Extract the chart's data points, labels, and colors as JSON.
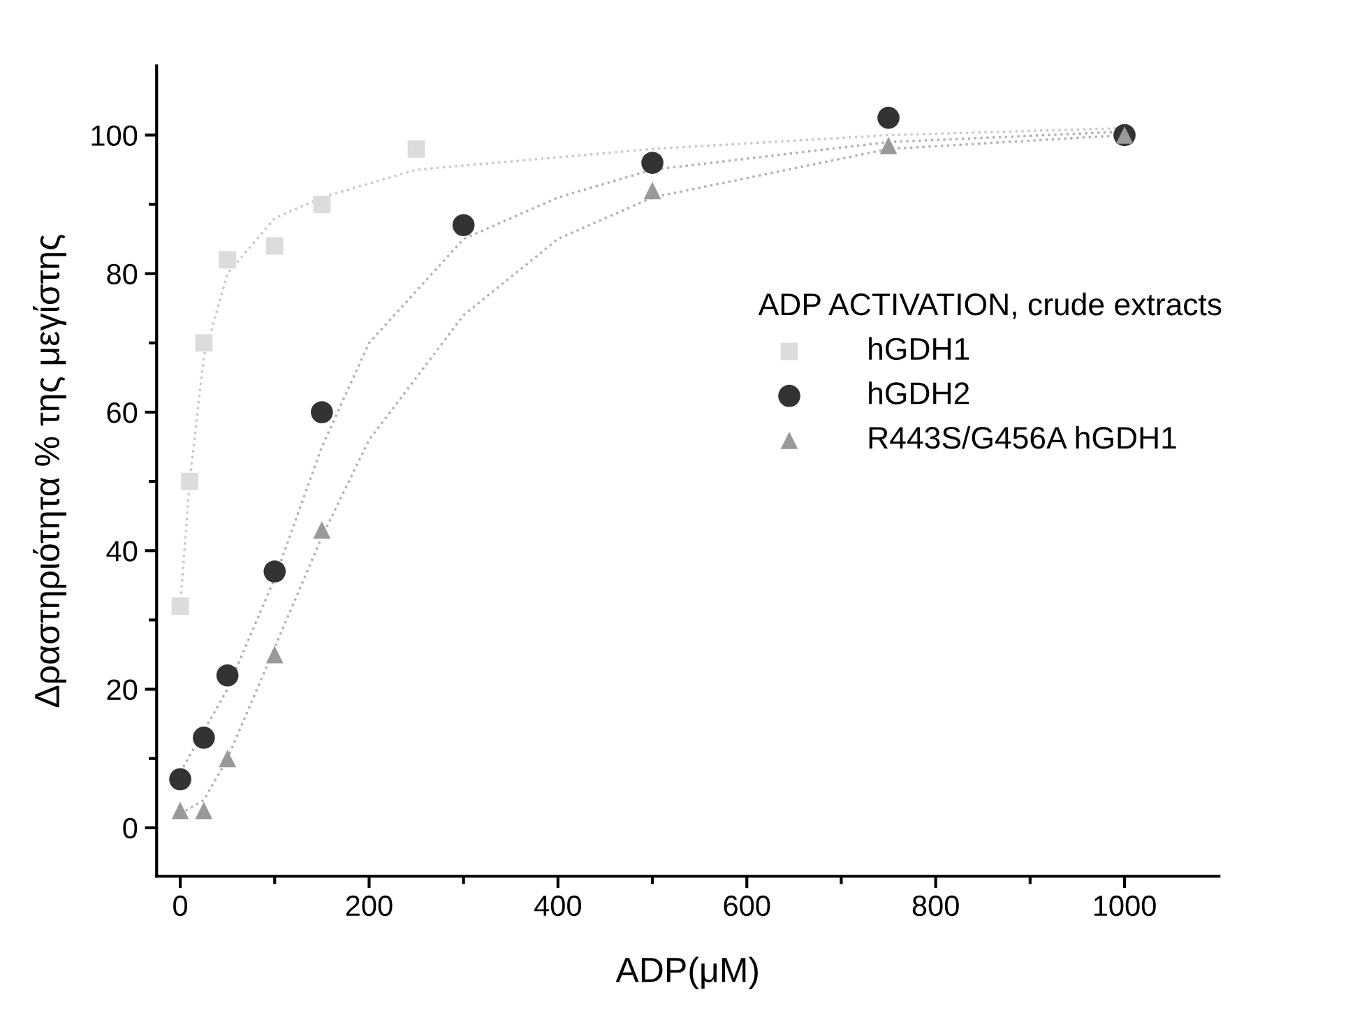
{
  "chart_data": {
    "type": "scatter",
    "xlabel": "ADP(μM)",
    "ylabel": "Δραστηριότητα % της μεγίστης",
    "legend_title": "ADP ACTIVATION, crude extracts",
    "legend": "right",
    "xlim": [
      -25,
      1100
    ],
    "ylim": [
      -7,
      110
    ],
    "xticks": [
      0,
      {
        "value": 100,
        "label": null
      },
      200,
      {
        "value": 300,
        "label": null
      },
      400,
      {
        "value": 500,
        "label": null
      },
      600,
      {
        "value": 700,
        "label": null
      },
      800,
      {
        "value": 900,
        "label": null
      },
      1000
    ],
    "yticks": [
      0,
      {
        "value": 10,
        "label": null
      },
      20,
      {
        "value": 30,
        "label": null
      },
      40,
      {
        "value": 50,
        "label": null
      },
      60,
      {
        "value": 70,
        "label": null
      },
      80,
      {
        "value": 90,
        "label": null
      },
      100
    ],
    "grid": false,
    "series": [
      {
        "name": "hGDH1",
        "color": "#dcdcdc",
        "marker": "square",
        "x": [
          0,
          10,
          25,
          50,
          100,
          150,
          250
        ],
        "values": [
          32,
          50,
          70,
          82,
          84,
          90,
          98
        ]
      },
      {
        "name": "hGDH2",
        "color": "#333333",
        "marker": "circle",
        "x": [
          0,
          25,
          50,
          100,
          150,
          300,
          500,
          750,
          1000
        ],
        "values": [
          7,
          13,
          22,
          37,
          60,
          87,
          96,
          102.5,
          100
        ]
      },
      {
        "name": "R443S/G456A hGDH1",
        "color": "#999999",
        "marker": "triangle",
        "x": [
          0,
          25,
          50,
          100,
          150,
          500,
          750,
          1000
        ],
        "values": [
          2.5,
          2.5,
          10,
          25,
          43,
          92,
          98.5,
          100
        ]
      },
      {
        "type": "line",
        "color": "#c8c8c8",
        "line_style": "dotted",
        "marker": "none",
        "x": [
          0,
          10,
          25,
          50,
          100,
          150,
          250,
          500,
          750,
          1000
        ],
        "values": [
          32,
          50,
          68,
          80,
          88,
          91,
          95,
          98,
          100,
          101
        ]
      },
      {
        "type": "line",
        "color": "#b0b0b0",
        "line_style": "dotted",
        "marker": "none",
        "x": [
          0,
          50,
          100,
          150,
          200,
          300,
          400,
          500,
          750,
          1000
        ],
        "values": [
          8,
          20,
          36,
          55,
          70,
          85,
          91,
          95,
          99,
          100.5
        ]
      },
      {
        "type": "line",
        "color": "#b0b0b0",
        "line_style": "dotted",
        "marker": "none",
        "x": [
          0,
          25,
          50,
          100,
          150,
          200,
          300,
          400,
          500,
          750,
          1000
        ],
        "values": [
          2,
          4,
          10,
          26,
          42,
          56,
          74,
          85,
          91,
          98,
          100
        ]
      }
    ]
  }
}
